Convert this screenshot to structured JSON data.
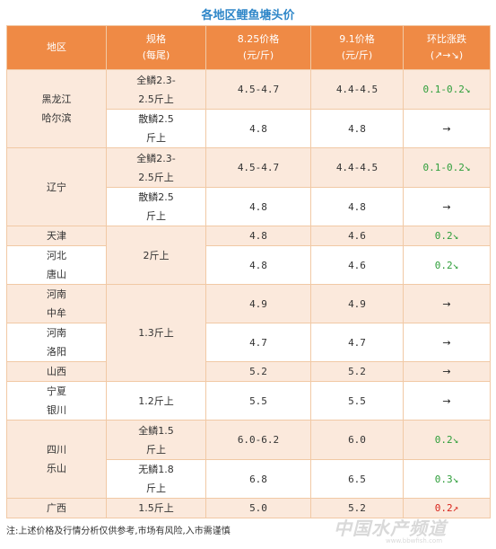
{
  "title": "各地区鲤鱼塘头价",
  "header": {
    "region": "地区",
    "spec": "规格\n(每尾)",
    "price_825": "8.25价格\n(元/斤)",
    "price_91": "9.1价格\n(元/斤)",
    "change": "环比涨跌\n(↗→↘)"
  },
  "rows": [
    {
      "region": "黑龙江\n哈尔滨",
      "spec": "全鳞2.3-\n2.5斤上",
      "p1": "4.5-4.7",
      "p2": "4.4-4.5",
      "change": "0.1-0.2↘"
    },
    {
      "spec": "散鳞2.5\n斤上",
      "p1": "4.8",
      "p2": "4.8",
      "change": "→"
    },
    {
      "region": "辽宁",
      "spec": "全鳞2.3-\n2.5斤上",
      "p1": "4.5-4.7",
      "p2": "4.4-4.5",
      "change": "0.1-0.2↘"
    },
    {
      "spec": "散鳞2.5\n斤上",
      "p1": "4.8",
      "p2": "4.8",
      "change": "→"
    },
    {
      "region": "天津",
      "spec": "2斤上",
      "p1": "4.8",
      "p2": "4.6",
      "change": "0.2↘"
    },
    {
      "region": "河北\n唐山",
      "p1": "4.8",
      "p2": "4.6",
      "change": "0.2↘"
    },
    {
      "region": "河南\n中牟",
      "spec": "1.3斤上",
      "p1": "4.9",
      "p2": "4.9",
      "change": "→"
    },
    {
      "region": "河南\n洛阳",
      "p1": "4.7",
      "p2": "4.7",
      "change": "→"
    },
    {
      "region": "山西",
      "p1": "5.2",
      "p2": "5.2",
      "change": "→"
    },
    {
      "region": "宁夏\n银川",
      "spec": "1.2斤上",
      "p1": "5.5",
      "p2": "5.5",
      "change": "→"
    },
    {
      "region": "四川\n乐山",
      "spec": "全鳞1.5\n斤上",
      "p1": "6.0-6.2",
      "p2": "6.0",
      "change": "0.2↘"
    },
    {
      "spec": "无鳞1.8\n斤上",
      "p1": "6.8",
      "p2": "6.5",
      "change": "0.3↘"
    },
    {
      "region": "广西",
      "spec": "1.5斤上",
      "p1": "5.0",
      "p2": "5.2",
      "change": "0.2↗"
    }
  ],
  "note": "注:上述价格及行情分析仅供参考,市场有风险,入市需谨慎",
  "watermark": "中国水产频道",
  "watermark_url": "www.bbwfish.com",
  "colors": {
    "header_bg": "#ef8a45",
    "shade_bg": "#fbe9dc",
    "title": "#2e86c8",
    "down": "#2e9e3a",
    "up": "#d8251c"
  }
}
